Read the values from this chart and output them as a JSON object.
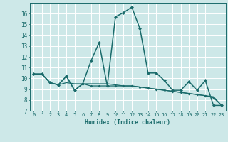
{
  "xlabel": "Humidex (Indice chaleur)",
  "background_color": "#cde8e8",
  "grid_color": "#ffffff",
  "line_color": "#1a6b6b",
  "xlim": [
    -0.5,
    23.5
  ],
  "ylim": [
    7,
    17
  ],
  "yticks": [
    7,
    8,
    9,
    10,
    11,
    12,
    13,
    14,
    15,
    16
  ],
  "xticks": [
    0,
    1,
    2,
    3,
    4,
    5,
    6,
    7,
    8,
    9,
    10,
    11,
    12,
    13,
    14,
    15,
    16,
    17,
    18,
    19,
    20,
    21,
    22,
    23
  ],
  "series1_x": [
    0,
    1,
    2,
    3,
    4,
    5,
    6,
    7,
    8,
    9,
    10,
    11,
    12,
    13,
    14,
    15,
    16,
    17,
    18,
    19,
    20,
    21,
    22,
    23
  ],
  "series1_y": [
    10.4,
    10.4,
    9.6,
    9.4,
    10.2,
    8.9,
    9.5,
    11.6,
    13.3,
    9.3,
    15.7,
    16.1,
    16.6,
    14.6,
    10.5,
    10.5,
    9.8,
    8.9,
    8.9,
    9.7,
    8.9,
    9.8,
    7.5,
    7.5
  ],
  "series2_x": [
    0,
    1,
    2,
    3,
    4,
    5,
    6,
    7,
    8,
    9,
    10,
    11,
    12,
    13,
    14,
    15,
    16,
    17,
    18,
    19,
    20,
    21,
    22,
    23
  ],
  "series2_y": [
    10.4,
    10.4,
    9.6,
    9.4,
    10.2,
    8.9,
    9.5,
    9.3,
    9.3,
    9.3,
    9.3,
    9.3,
    9.3,
    9.2,
    9.1,
    9.0,
    8.9,
    8.8,
    8.7,
    8.6,
    8.5,
    8.4,
    8.2,
    7.5
  ],
  "series3_x": [
    0,
    1,
    2,
    3,
    4,
    5,
    6,
    7,
    8,
    9,
    10,
    11,
    12,
    13,
    14,
    15,
    16,
    17,
    18,
    19,
    20,
    21,
    22,
    23
  ],
  "series3_y": [
    10.4,
    10.4,
    9.6,
    9.4,
    9.6,
    9.5,
    9.5,
    9.5,
    9.5,
    9.5,
    9.4,
    9.3,
    9.3,
    9.2,
    9.1,
    9.0,
    8.9,
    8.8,
    8.7,
    8.6,
    8.5,
    8.4,
    8.3,
    7.5
  ]
}
